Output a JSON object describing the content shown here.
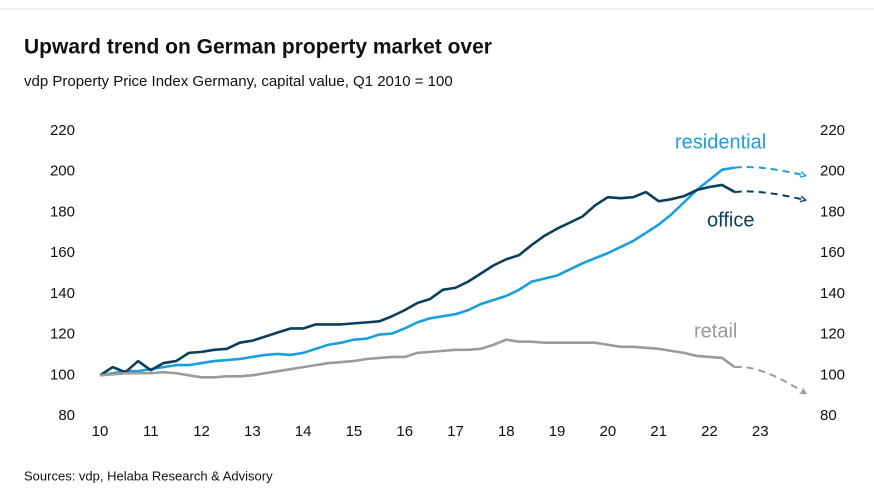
{
  "chart_data": {
    "type": "line",
    "title": "Upward trend on German property market over",
    "subtitle": "vdp Property Price Index Germany, capital value, Q1 2010 = 100",
    "source": "Sources: vdp, Helaba Research & Advisory",
    "x": [
      10,
      10.25,
      10.5,
      10.75,
      11,
      11.25,
      11.5,
      11.75,
      12,
      12.25,
      12.5,
      12.75,
      13,
      13.25,
      13.5,
      13.75,
      14,
      14.25,
      14.5,
      14.75,
      15,
      15.25,
      15.5,
      15.75,
      16,
      16.25,
      16.5,
      16.75,
      17,
      17.25,
      17.5,
      17.75,
      18,
      18.25,
      18.5,
      18.75,
      19,
      19.25,
      19.5,
      19.75,
      20,
      20.25,
      20.5,
      20.75,
      21,
      21.25,
      21.5,
      21.75,
      22,
      22.25,
      22.5
    ],
    "series": [
      {
        "name": "residential",
        "color": "#1a9fde",
        "values": [
          100,
          101,
          102,
          102,
          103,
          104,
          105,
          105,
          106,
          107,
          107.5,
          108,
          109,
          110,
          110.5,
          110,
          111,
          113,
          115,
          116,
          117.5,
          118,
          120,
          120.5,
          123,
          126,
          128,
          129,
          130,
          132,
          135,
          137,
          139,
          142,
          146,
          147.5,
          149,
          152,
          155,
          157.5,
          160,
          163,
          166,
          170,
          174,
          179,
          185,
          191,
          196,
          201,
          202
        ],
        "forecast": {
          "x": [
            22.5,
            23.9
          ],
          "values": [
            202,
            198
          ]
        }
      },
      {
        "name": "office",
        "color": "#0b3f5c",
        "values": [
          100,
          104,
          101.5,
          107,
          102.5,
          106,
          107,
          111,
          111.5,
          112.5,
          113,
          116,
          117,
          119,
          121,
          123,
          123,
          125,
          125,
          125,
          125.5,
          126,
          126.5,
          129,
          132,
          135.5,
          137.5,
          142,
          143,
          146,
          150,
          154,
          157,
          159,
          164,
          168.5,
          172,
          175,
          178,
          183.5,
          187.5,
          187,
          187.5,
          190,
          185.5,
          186.5,
          188,
          191,
          192.5,
          193.5,
          190
        ],
        "forecast": {
          "x": [
            22.5,
            23.9
          ],
          "values": [
            190,
            186
          ]
        }
      },
      {
        "name": "retail",
        "color": "#9b9b9b",
        "values": [
          100,
          100.5,
          101,
          101,
          101,
          101.5,
          101,
          100,
          99,
          99,
          99.5,
          99.5,
          100,
          101,
          102,
          103,
          104,
          105,
          106,
          106.5,
          107,
          108,
          108.5,
          109,
          109,
          111,
          111.5,
          112,
          112.5,
          112.5,
          113,
          115,
          117.5,
          116.5,
          116.5,
          116,
          116,
          116,
          116,
          116,
          115,
          114,
          114,
          113.5,
          113,
          112,
          111,
          109.5,
          109,
          108.5,
          104
        ],
        "forecast": {
          "x": [
            22.5,
            23.9
          ],
          "values": [
            104,
            91
          ]
        }
      }
    ],
    "xlim": [
      10,
      24
    ],
    "xticks": [
      10,
      11,
      12,
      13,
      14,
      15,
      16,
      17,
      18,
      19,
      20,
      21,
      22,
      23
    ],
    "ylim": [
      80,
      220
    ],
    "yticks": [
      80,
      100,
      120,
      140,
      160,
      180,
      200,
      220
    ],
    "y2lim": [
      80,
      220
    ],
    "y2ticks": [
      80,
      100,
      120,
      140,
      160,
      180,
      200,
      220
    ],
    "grid": false
  }
}
